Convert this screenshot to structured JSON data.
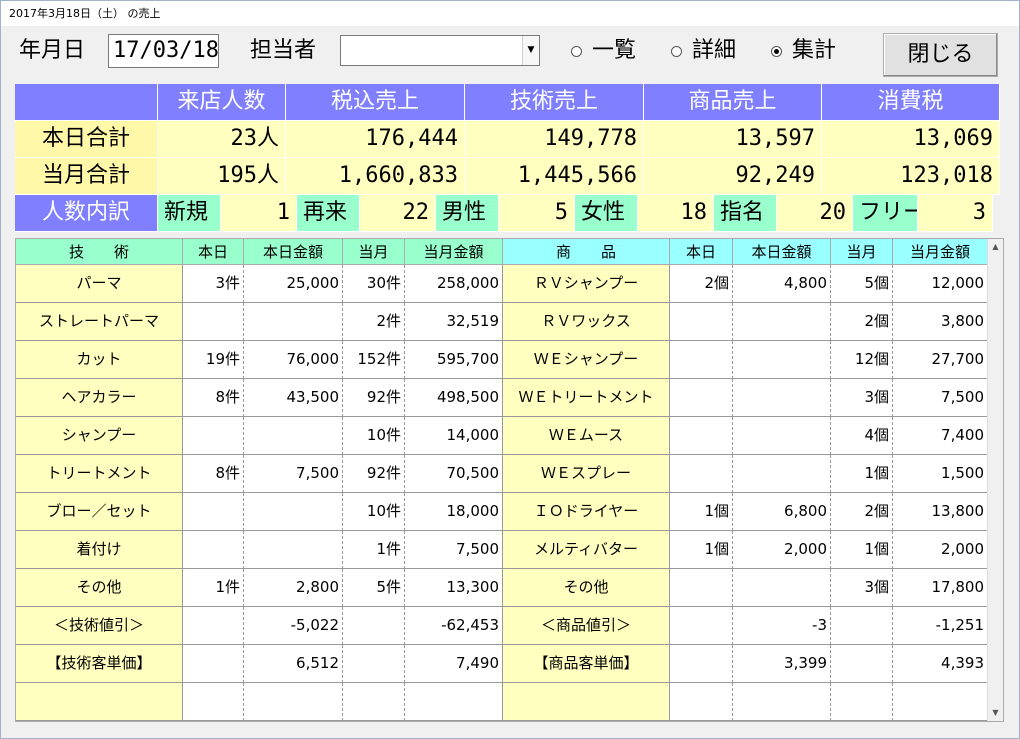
{
  "window": {
    "title": "2017年3月18日（土） の売上"
  },
  "toolbar": {
    "date_label": "年月日",
    "date_value": "17/03/18",
    "staff_label": "担当者",
    "staff_value": "",
    "radio_list": "一覧",
    "radio_detail": "詳細",
    "radio_summary": "集計",
    "selected_radio": "集計",
    "close_label": "閉じる"
  },
  "summary": {
    "headers": [
      "来店人数",
      "税込売上",
      "技術売上",
      "商品売上",
      "消費税"
    ],
    "today": {
      "label": "本日合計",
      "values": [
        "23人",
        "176,444",
        "149,778",
        "13,597",
        "13,069"
      ]
    },
    "month": {
      "label": "当月合計",
      "values": [
        "195人",
        "1,660,833",
        "1,445,566",
        "92,249",
        "123,018"
      ]
    },
    "breakdown": {
      "label": "人数内訳",
      "items": [
        {
          "label": "新規",
          "value": "1"
        },
        {
          "label": "再来",
          "value": "22"
        },
        {
          "label": "男性",
          "value": "5"
        },
        {
          "label": "女性",
          "value": "18"
        },
        {
          "label": "指名",
          "value": "20"
        },
        {
          "label": "フリー",
          "value": "3"
        }
      ]
    }
  },
  "table": {
    "headers": [
      "技　　術",
      "本日",
      "本日金額",
      "当月",
      "当月金額",
      "商　　品",
      "本日",
      "本日金額",
      "当月",
      "当月金額"
    ],
    "rows": [
      [
        "パーマ",
        "3件",
        "25,000",
        "30件",
        "258,000",
        "ＲＶシャンプー",
        "2個",
        "4,800",
        "5個",
        "12,000"
      ],
      [
        "ストレートパーマ",
        "",
        "",
        "2件",
        "32,519",
        "ＲＶワックス",
        "",
        "",
        "2個",
        "3,800"
      ],
      [
        "カット",
        "19件",
        "76,000",
        "152件",
        "595,700",
        "ＷＥシャンプー",
        "",
        "",
        "12個",
        "27,700"
      ],
      [
        "ヘアカラー",
        "8件",
        "43,500",
        "92件",
        "498,500",
        "ＷＥトリートメント",
        "",
        "",
        "3個",
        "7,500"
      ],
      [
        "シャンプー",
        "",
        "",
        "10件",
        "14,000",
        "ＷＥムース",
        "",
        "",
        "4個",
        "7,400"
      ],
      [
        "トリートメント",
        "8件",
        "7,500",
        "92件",
        "70,500",
        "ＷＥスプレー",
        "",
        "",
        "1個",
        "1,500"
      ],
      [
        "ブロー／セット",
        "",
        "",
        "10件",
        "18,000",
        "ＩＯドライヤー",
        "1個",
        "6,800",
        "2個",
        "13,800"
      ],
      [
        "着付け",
        "",
        "",
        "1件",
        "7,500",
        "メルティバター",
        "1個",
        "2,000",
        "1個",
        "2,000"
      ],
      [
        "その他",
        "1件",
        "2,800",
        "5件",
        "13,300",
        "その他",
        "",
        "",
        "3個",
        "17,800"
      ],
      [
        "＜技術値引＞",
        "",
        "-5,022",
        "",
        "-62,453",
        "＜商品値引＞",
        "",
        "-3",
        "",
        "-1,251"
      ],
      [
        "【技術客単価】",
        "",
        "6,512",
        "",
        "7,490",
        "【商品客単価】",
        "",
        "3,399",
        "",
        "4,393"
      ],
      [
        "",
        "",
        "",
        "",
        "",
        "",
        "",
        "",
        "",
        ""
      ]
    ]
  }
}
